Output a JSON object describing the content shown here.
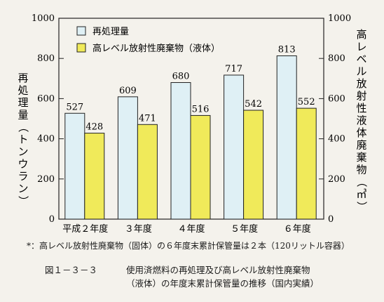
{
  "chart_data": {
    "type": "bar",
    "categories": [
      "平成２年度",
      "３年度",
      "４年度",
      "５年度",
      "６年度"
    ],
    "series": [
      {
        "name": "再処理量",
        "values": [
          527,
          609,
          680,
          717,
          813
        ],
        "color": "#dff0f5"
      },
      {
        "name": "高レベル放射性廃棄物（液体）",
        "values": [
          428,
          471,
          516,
          542,
          552
        ],
        "color": "#f0ea5a"
      }
    ],
    "ylabel_left": "再処理量（トンウラン）",
    "ylabel_right": "高レベル放射性液体廃棄物（㎥）",
    "ylim": [
      0,
      1000
    ],
    "yticks": [
      0,
      200,
      400,
      600,
      800,
      1000
    ],
    "grid": false,
    "legend": "top-left"
  },
  "note": "*：高レベル放射性廃棄物（固体）の６年度末累計保管量は２本（120リットル容器）",
  "caption": {
    "figure_no": "図１－３－３",
    "line1": "使用済燃料の再処理及び高レベル放射性廃棄物",
    "line2": "（液体）の年度末累計保管量の推移（国内実績）"
  }
}
